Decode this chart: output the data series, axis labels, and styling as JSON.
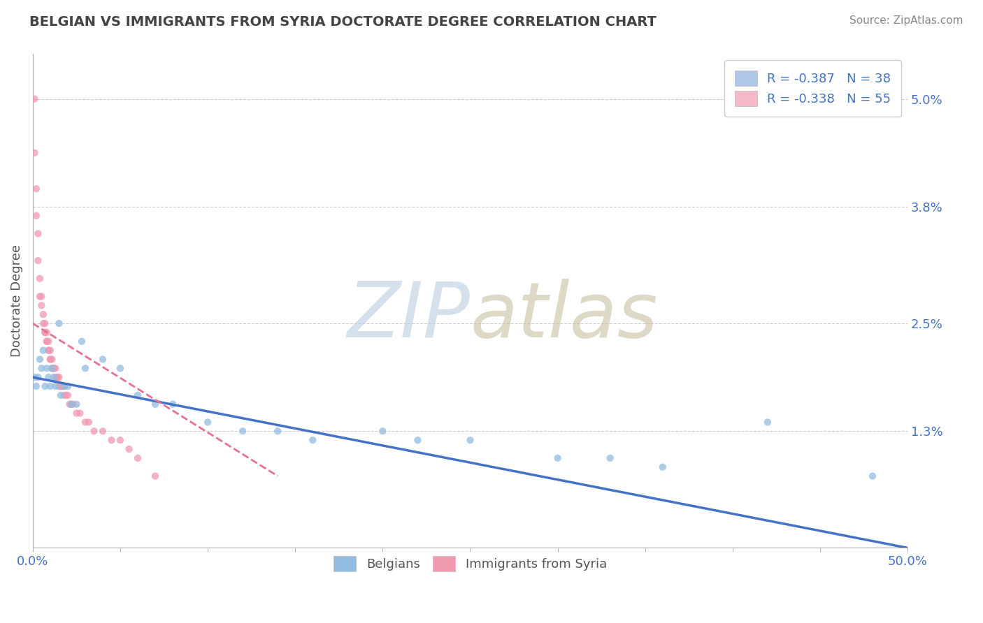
{
  "title": "BELGIAN VS IMMIGRANTS FROM SYRIA DOCTORATE DEGREE CORRELATION CHART",
  "source": "Source: ZipAtlas.com",
  "ylabel": "Doctorate Degree",
  "right_yticks": [
    "5.0%",
    "3.8%",
    "2.5%",
    "1.3%"
  ],
  "right_ytick_vals": [
    0.05,
    0.038,
    0.025,
    0.013
  ],
  "legend_entries": [
    {
      "label": "R = -0.387   N = 38",
      "color": "#aec6e8"
    },
    {
      "label": "R = -0.338   N = 55",
      "color": "#f4b8c8"
    }
  ],
  "belgians_x": [
    0.001,
    0.002,
    0.003,
    0.004,
    0.005,
    0.006,
    0.007,
    0.008,
    0.009,
    0.01,
    0.011,
    0.012,
    0.013,
    0.015,
    0.016,
    0.018,
    0.02,
    0.022,
    0.025,
    0.028,
    0.03,
    0.04,
    0.05,
    0.06,
    0.07,
    0.08,
    0.1,
    0.12,
    0.14,
    0.16,
    0.2,
    0.22,
    0.25,
    0.3,
    0.33,
    0.36,
    0.42,
    0.48
  ],
  "belgians_y": [
    0.019,
    0.018,
    0.019,
    0.021,
    0.02,
    0.022,
    0.018,
    0.02,
    0.019,
    0.018,
    0.02,
    0.019,
    0.018,
    0.025,
    0.017,
    0.018,
    0.018,
    0.016,
    0.016,
    0.023,
    0.02,
    0.021,
    0.02,
    0.017,
    0.016,
    0.016,
    0.014,
    0.013,
    0.013,
    0.012,
    0.013,
    0.012,
    0.012,
    0.01,
    0.01,
    0.009,
    0.014,
    0.008
  ],
  "syria_x": [
    0.001,
    0.001,
    0.002,
    0.002,
    0.003,
    0.003,
    0.004,
    0.004,
    0.005,
    0.005,
    0.006,
    0.006,
    0.007,
    0.007,
    0.007,
    0.008,
    0.008,
    0.008,
    0.009,
    0.009,
    0.009,
    0.01,
    0.01,
    0.01,
    0.011,
    0.011,
    0.012,
    0.012,
    0.013,
    0.013,
    0.014,
    0.014,
    0.015,
    0.015,
    0.016,
    0.016,
    0.017,
    0.018,
    0.018,
    0.019,
    0.02,
    0.021,
    0.022,
    0.023,
    0.025,
    0.027,
    0.03,
    0.032,
    0.035,
    0.04,
    0.045,
    0.05,
    0.055,
    0.06,
    0.07
  ],
  "syria_y": [
    0.05,
    0.044,
    0.04,
    0.037,
    0.035,
    0.032,
    0.03,
    0.028,
    0.028,
    0.027,
    0.026,
    0.025,
    0.025,
    0.024,
    0.024,
    0.024,
    0.023,
    0.023,
    0.023,
    0.022,
    0.022,
    0.022,
    0.021,
    0.021,
    0.021,
    0.02,
    0.02,
    0.02,
    0.02,
    0.019,
    0.019,
    0.019,
    0.019,
    0.018,
    0.018,
    0.018,
    0.018,
    0.018,
    0.017,
    0.017,
    0.017,
    0.016,
    0.016,
    0.016,
    0.015,
    0.015,
    0.014,
    0.014,
    0.013,
    0.013,
    0.012,
    0.012,
    0.011,
    0.01,
    0.008
  ],
  "blue_line_x": [
    0.0,
    0.5
  ],
  "blue_line_y": [
    0.019,
    0.0
  ],
  "pink_line_x": [
    0.0,
    0.14
  ],
  "pink_line_y": [
    0.025,
    0.008
  ],
  "xlim": [
    0.0,
    0.5
  ],
  "ylim": [
    0.0,
    0.055
  ],
  "scatter_size": 55,
  "belgian_color": "#92bce0",
  "syria_color": "#f09ab0",
  "blue_line_color": "#4472c4",
  "pink_line_color": "#e87090",
  "watermark_zip_color": "#b8cce0",
  "watermark_atlas_color": "#c8c0a0",
  "background_color": "#ffffff",
  "grid_color": "#cccccc"
}
